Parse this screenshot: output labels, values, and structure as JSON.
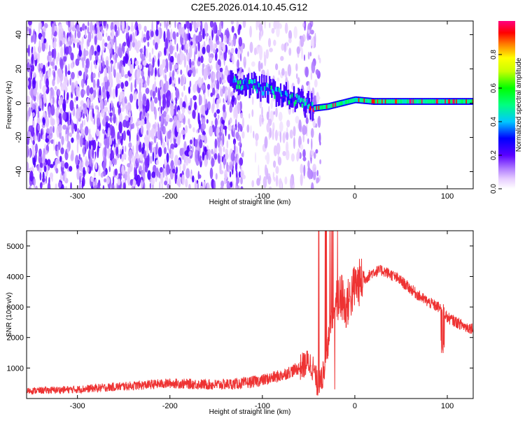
{
  "title": "C2E5.2026.014.10.45.G12",
  "colors": {
    "snr_line": "#ee3333",
    "colormap": [
      "#ffffff",
      "#d9b8ff",
      "#9b5cff",
      "#5a00ff",
      "#0000ff",
      "#00c8ff",
      "#00ff00",
      "#ffff00",
      "#ff8000",
      "#ff0000",
      "#ff0080"
    ]
  },
  "chart_data": [
    {
      "type": "heatmap",
      "xlabel": "Height of straight line (km)",
      "ylabel": "Frequency (Hz)",
      "xlim": [
        -355,
        128
      ],
      "ylim": [
        -50,
        48
      ],
      "x_ticks": [
        -300,
        -200,
        -100,
        0,
        100
      ],
      "y_ticks": [
        -40,
        -20,
        0,
        20,
        40
      ],
      "colorbar": {
        "label": "Normalized spectral amplitude",
        "range": [
          0.0,
          1.0
        ],
        "ticks": [
          0.0,
          0.2,
          0.4,
          0.6,
          0.8
        ]
      },
      "ridge": {
        "description_points_x": [
          -130,
          -110,
          -90,
          -70,
          -55,
          -45,
          -30,
          -15,
          0,
          20,
          60,
          100,
          128
        ],
        "description_points_y": [
          12,
          10,
          7,
          3,
          0,
          -3,
          -2,
          0,
          2,
          1,
          1,
          1,
          1
        ],
        "peak_amplitude": 1.0
      },
      "noise_region_x": [
        -355,
        -120
      ],
      "sparse_region_x": [
        -120,
        -45
      ]
    },
    {
      "type": "line",
      "xlabel": "Height of straight line (km)",
      "ylabel": "SNR (10 * v/v)",
      "xlim": [
        -355,
        128
      ],
      "ylim": [
        0,
        5500
      ],
      "x_ticks": [
        -300,
        -200,
        -100,
        0,
        100
      ],
      "y_ticks": [
        1000,
        2000,
        3000,
        4000,
        5000
      ],
      "envelope": {
        "x": [
          -355,
          -300,
          -250,
          -200,
          -150,
          -120,
          -100,
          -80,
          -60,
          -50,
          -45,
          -40,
          -35,
          -30,
          -25,
          -20,
          -15,
          -10,
          -5,
          0,
          10,
          20,
          30,
          40,
          50,
          60,
          70,
          80,
          90,
          95,
          100,
          110,
          120,
          128
        ],
        "y": [
          250,
          300,
          400,
          500,
          450,
          500,
          600,
          750,
          1000,
          1200,
          1000,
          400,
          700,
          1600,
          2600,
          3100,
          3400,
          3000,
          3300,
          3700,
          3900,
          4150,
          4200,
          4050,
          3850,
          3600,
          3350,
          3150,
          3000,
          2950,
          2650,
          2500,
          2350,
          2300
        ]
      }
    }
  ]
}
